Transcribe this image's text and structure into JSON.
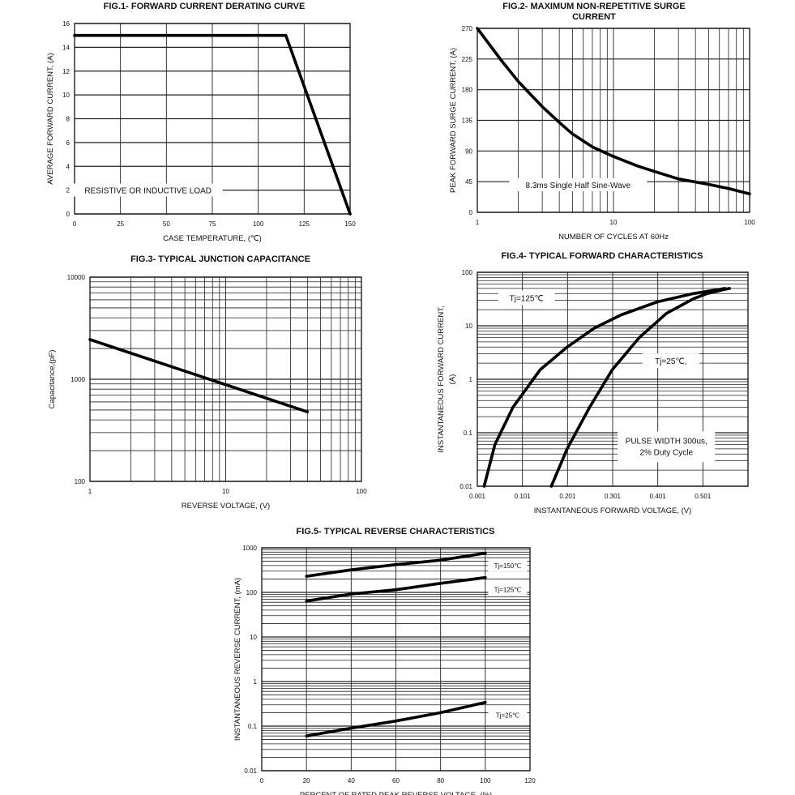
{
  "charts": [
    {
      "id": "fig1",
      "type": "line",
      "title": "FIG.1- FORWARD CURRENT DERATING CURVE",
      "xlabel": "CASE TEMPERATURE, (℃)",
      "ylabel": "AVERAGE FORWARD CURRENT, (A)",
      "xscale": "linear",
      "yscale": "linear",
      "xlim": [
        0,
        150
      ],
      "ylim": [
        0,
        16
      ],
      "xticks": [
        0,
        25,
        50,
        75,
        100,
        125,
        150
      ],
      "xtick_labels": [
        "0",
        "25",
        "50",
        "75",
        "100",
        "125",
        "150"
      ],
      "yticks": [
        0,
        2,
        4,
        6,
        8,
        10,
        12,
        14,
        16
      ],
      "ytick_labels": [
        "0",
        "2",
        "4",
        "6",
        "8",
        "10",
        "12",
        "14",
        "16"
      ],
      "grid": true,
      "series": [
        {
          "name": "",
          "x": [
            0,
            115,
            150
          ],
          "y": [
            15,
            15,
            0
          ]
        }
      ],
      "annotations": [
        {
          "text": "RESISTIVE OR INDUCTIVE LOAD",
          "x": 40,
          "y": 1.8
        }
      ]
    },
    {
      "id": "fig2",
      "type": "line",
      "title": "FIG.2- MAXIMUM NON-REPETITIVE SURGE CURRENT",
      "title_lines": [
        "FIG.2- MAXIMUM NON-REPETITIVE SURGE",
        "CURRENT"
      ],
      "xlabel": "NUMBER OF CYCLES AT 60Hz",
      "ylabel": "PEAK FORWARD SURGE CURRENT, (A)",
      "xscale": "log",
      "yscale": "linear",
      "xlim": [
        1,
        100
      ],
      "ylim": [
        0,
        270
      ],
      "xticks": [
        1,
        10,
        100
      ],
      "xtick_labels": [
        "1",
        "10",
        "100"
      ],
      "yticks": [
        0,
        45,
        90,
        135,
        180,
        225,
        270
      ],
      "ytick_labels": [
        "0",
        "45",
        "90",
        "135",
        "180",
        "225",
        "270"
      ],
      "grid": true,
      "series": [
        {
          "name": "",
          "x": [
            1,
            1.5,
            2,
            3,
            4,
            5,
            7,
            10,
            15,
            20,
            30,
            50,
            70,
            100
          ],
          "y": [
            270,
            223,
            192,
            155,
            132,
            115,
            96,
            82,
            68,
            60,
            49,
            41,
            35,
            27
          ]
        }
      ],
      "annotations": [
        {
          "text": "8.3ms Single Half Sine-Wave",
          "x": 5.5,
          "y": 37
        }
      ]
    },
    {
      "id": "fig3",
      "type": "line",
      "title": "FIG.3- TYPICAL JUNCTION CAPACITANCE",
      "xlabel": "REVERSE VOLTAGE, (V)",
      "ylabel": "Capacitance,(pF)",
      "xscale": "log",
      "yscale": "log",
      "xlim": [
        1,
        100
      ],
      "ylim": [
        100,
        10000
      ],
      "xticks": [
        1,
        10,
        100
      ],
      "xtick_labels": [
        "1",
        "10",
        "100"
      ],
      "yticks": [
        100,
        1000,
        10000
      ],
      "ytick_labels": [
        "100",
        "1000",
        "10000"
      ],
      "grid": true,
      "series": [
        {
          "name": "",
          "x": [
            1,
            40
          ],
          "y": [
            2450,
            480
          ]
        }
      ],
      "annotations": []
    },
    {
      "id": "fig4",
      "type": "line",
      "title": "FIG.4- TYPICAL FORWARD CHARACTERISTICS",
      "xlabel": "INSTANTANEOUS FORWARD VOLTAGE, (V)",
      "ylabel": "INSTANTANEOUS FORWARD CURRENT, (A)",
      "ylabel_lines": [
        "INSTANTANEOUS FORWARD CURRENT,",
        "(A)"
      ],
      "xscale": "linear",
      "yscale": "log",
      "xlim": [
        0.001,
        0.601
      ],
      "ylim": [
        0.01,
        100
      ],
      "xticks": [
        0.001,
        0.101,
        0.201,
        0.301,
        0.401,
        0.501
      ],
      "xtick_labels": [
        "0.001",
        "0.101",
        "0.201",
        "0.301",
        "0.401",
        "0.501"
      ],
      "yticks": [
        0.01,
        0.1,
        1,
        10,
        100
      ],
      "ytick_labels": [
        "0.01",
        "0.1",
        "1",
        "10",
        "100"
      ],
      "grid": true,
      "series": [
        {
          "name": "Tj=125℃",
          "x": [
            0.016,
            0.04,
            0.08,
            0.14,
            0.2,
            0.26,
            0.32,
            0.4,
            0.48,
            0.55
          ],
          "y": [
            0.01,
            0.06,
            0.3,
            1.5,
            4,
            9,
            16,
            28,
            40,
            50
          ]
        },
        {
          "name": "Tj=25℃,",
          "x": [
            0.165,
            0.2,
            0.25,
            0.3,
            0.36,
            0.42,
            0.48,
            0.51,
            0.55,
            0.56
          ],
          "y": [
            0.01,
            0.05,
            0.3,
            1.5,
            6,
            17,
            32,
            40,
            48,
            50
          ]
        }
      ],
      "annotations": [
        {
          "text": "Tj=125℃",
          "x": 0.11,
          "y": 30
        },
        {
          "text": "Tj=25℃,",
          "x": 0.43,
          "y": 2
        },
        {
          "text": "PULSE WIDTH 300us,",
          "x": 0.42,
          "y": 0.065
        },
        {
          "text": "2% Duty Cycle",
          "x": 0.42,
          "y": 0.04
        }
      ]
    },
    {
      "id": "fig5",
      "type": "line",
      "title": "FIG.5- TYPICAL REVERSE CHARACTERISTICS",
      "xlabel": "PERCENT OF RATED PEAK REVERSE VOLTAGE, (%)",
      "ylabel": "INSTANTANEOUS REVERSE CURRENT, (mA)",
      "xscale": "linear",
      "yscale": "log",
      "xlim": [
        0,
        120
      ],
      "ylim": [
        0.01,
        1000
      ],
      "xticks": [
        0,
        20,
        40,
        60,
        80,
        100,
        120
      ],
      "xtick_labels": [
        "0",
        "20",
        "40",
        "60",
        "80",
        "100",
        "120"
      ],
      "yticks": [
        0.01,
        0.1,
        1,
        10,
        100,
        1000
      ],
      "ytick_labels": [
        "0.01",
        "0.1",
        "1",
        "10",
        "100",
        "1000"
      ],
      "grid": true,
      "series": [
        {
          "name": "Tj=150℃",
          "x": [
            20,
            40,
            60,
            80,
            100
          ],
          "y": [
            230,
            320,
            420,
            530,
            760
          ]
        },
        {
          "name": "Tj=125℃",
          "x": [
            20,
            40,
            60,
            80,
            100
          ],
          "y": [
            64,
            92,
            115,
            160,
            215
          ]
        },
        {
          "name": "Tj=25℃",
          "x": [
            20,
            40,
            60,
            80,
            100
          ],
          "y": [
            0.06,
            0.09,
            0.13,
            0.2,
            0.34
          ]
        }
      ],
      "annotations": [
        {
          "text": "Tj=150℃",
          "x": 110,
          "y": 380
        },
        {
          "text": "Tj=125℃",
          "x": 110,
          "y": 110
        },
        {
          "text": "Tj=25℃",
          "x": 110,
          "y": 0.17
        }
      ]
    }
  ]
}
